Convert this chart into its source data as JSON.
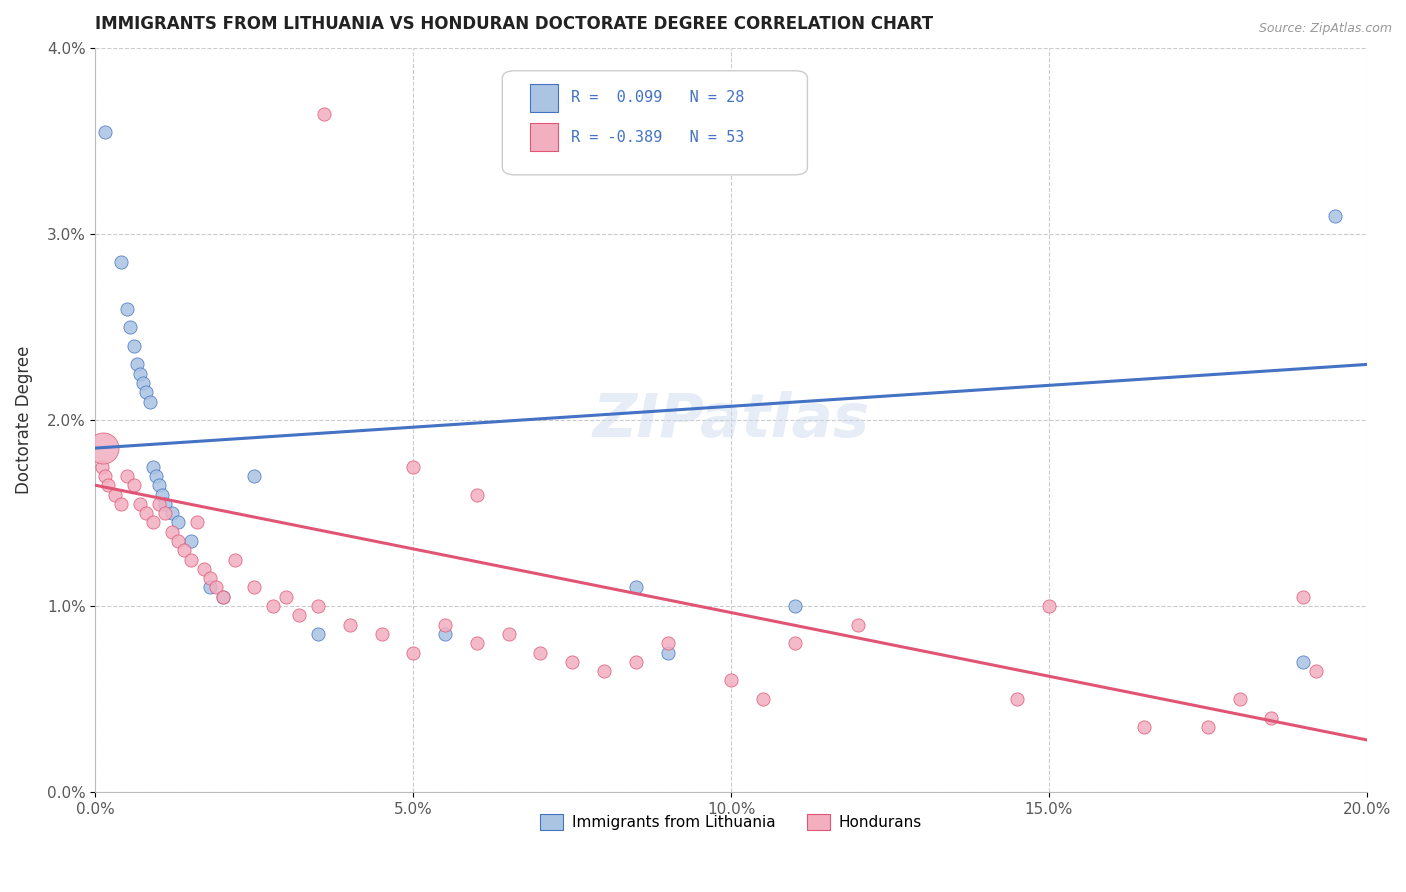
{
  "title": "IMMIGRANTS FROM LITHUANIA VS HONDURAN DOCTORATE DEGREE CORRELATION CHART",
  "source": "Source: ZipAtlas.com",
  "ylabel": "Doctorate Degree",
  "xlim": [
    0.0,
    20.0
  ],
  "ylim": [
    0.0,
    4.0
  ],
  "legend_label1": "Immigrants from Lithuania",
  "legend_label2": "Hondurans",
  "r1": "0.099",
  "n1": "28",
  "r2": "-0.389",
  "n2": "53",
  "color_blue": "#aac4e2",
  "color_pink": "#f2afc0",
  "line_blue": "#4472c4",
  "line_pink": "#e05575",
  "watermark": "ZIPatlas",
  "blue_line_start": 1.85,
  "blue_line_end": 2.3,
  "pink_line_start": 1.65,
  "pink_line_end": 0.28,
  "blue_x": [
    0.15,
    0.4,
    0.5,
    0.55,
    0.6,
    0.65,
    0.7,
    0.75,
    0.8,
    0.85,
    0.9,
    0.95,
    1.0,
    1.05,
    1.1,
    1.2,
    1.3,
    1.5,
    1.8,
    2.0,
    2.5,
    3.5,
    5.5,
    8.5,
    9.0,
    11.0,
    19.0,
    19.5
  ],
  "blue_y": [
    3.55,
    2.85,
    2.6,
    2.5,
    2.4,
    2.3,
    2.25,
    2.2,
    2.15,
    2.1,
    1.75,
    1.7,
    1.65,
    1.6,
    1.55,
    1.5,
    1.45,
    1.35,
    1.1,
    1.05,
    1.7,
    0.85,
    0.85,
    1.1,
    0.75,
    1.0,
    0.7,
    3.1
  ],
  "pink_x": [
    0.1,
    0.15,
    0.2,
    0.3,
    0.4,
    0.5,
    0.6,
    0.7,
    0.8,
    0.9,
    1.0,
    1.1,
    1.2,
    1.3,
    1.4,
    1.5,
    1.6,
    1.7,
    1.8,
    1.9,
    2.0,
    2.2,
    2.5,
    2.8,
    3.0,
    3.2,
    3.5,
    4.0,
    4.5,
    5.0,
    5.0,
    5.5,
    6.0,
    6.0,
    6.5,
    7.0,
    7.5,
    8.0,
    8.5,
    9.0,
    10.0,
    10.5,
    11.0,
    12.0,
    14.5,
    15.0,
    16.5,
    17.5,
    18.0,
    18.5,
    19.0,
    19.2,
    3.6
  ],
  "pink_y": [
    1.75,
    1.7,
    1.65,
    1.6,
    1.55,
    1.7,
    1.65,
    1.55,
    1.5,
    1.45,
    1.55,
    1.5,
    1.4,
    1.35,
    1.3,
    1.25,
    1.45,
    1.2,
    1.15,
    1.1,
    1.05,
    1.25,
    1.1,
    1.0,
    1.05,
    0.95,
    1.0,
    0.9,
    0.85,
    0.75,
    1.75,
    0.9,
    0.8,
    1.6,
    0.85,
    0.75,
    0.7,
    0.65,
    0.7,
    0.8,
    0.6,
    0.5,
    0.8,
    0.9,
    0.5,
    1.0,
    0.35,
    0.35,
    0.5,
    0.4,
    1.05,
    0.65,
    3.65
  ],
  "pink_large_x": [
    0.12
  ],
  "pink_large_y": [
    1.85
  ],
  "pink_large_size": 500
}
